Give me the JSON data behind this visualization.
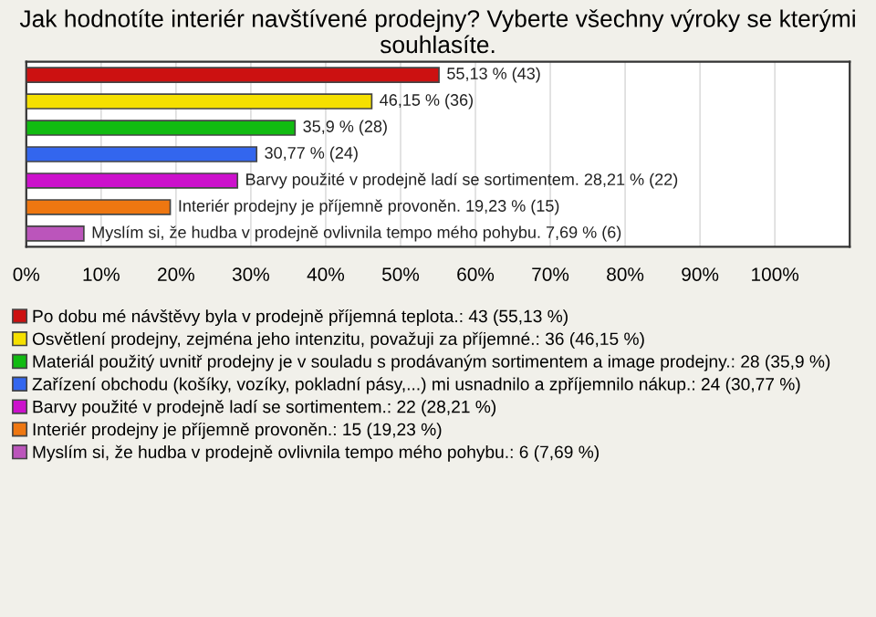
{
  "chart_data": {
    "type": "bar",
    "orientation": "horizontal",
    "stacked": true,
    "title": "Jak hodnotíte interiér navštívené prodejny? Vyberte všechny výroky se kterými souhlasíte.",
    "categories": [
      null,
      null,
      null,
      null,
      null,
      null,
      null
    ],
    "series": [
      {
        "name": "Po dobu mé návštěvy byla v prodejně příjemná teplota.: 43 (55,13 %)",
        "color": "#cc1111",
        "values": [
          55.13,
          null,
          null,
          null,
          null,
          null,
          null
        ],
        "value_labels": [
          "55,13 % (43)",
          null,
          null,
          null,
          null,
          null,
          null
        ]
      },
      {
        "name": "Osvětlení prodejny, zejména jeho intenzitu, považuji za příjemné.: 36 (46,15 %)",
        "color": "#f5e000",
        "values": [
          null,
          46.15,
          null,
          null,
          null,
          null,
          null
        ],
        "value_labels": [
          null,
          "46,15 % (36)",
          null,
          null,
          null,
          null,
          null
        ]
      },
      {
        "name": "Materiál použitý uvnitř prodejny je v souladu s prodávaným sortimentem a image prodejny.: 28 (35,9 %)",
        "color": "#11bb11",
        "values": [
          null,
          null,
          35.9,
          null,
          null,
          null,
          null
        ],
        "value_labels": [
          null,
          null,
          "35,9 % (28)",
          null,
          null,
          null,
          null
        ]
      },
      {
        "name": "Zařízení obchodu (košíky, vozíky, pokladní pásy,...) mi usnadnilo a zpříjemnilo nákup.: 24 (30,77 %)",
        "color": "#3366ee",
        "values": [
          null,
          null,
          null,
          30.77,
          null,
          null,
          null
        ],
        "value_labels": [
          null,
          null,
          null,
          "30,77 % (24)",
          null,
          null,
          null
        ]
      },
      {
        "name": "Barvy použité v prodejně ladí se sortimentem.: 22 (28,21 %)",
        "color": "#cc11cc",
        "values": [
          null,
          null,
          null,
          null,
          28.21,
          null,
          null
        ],
        "value_labels": [
          null,
          null,
          null,
          null,
          "Barvy použité v prodejně ladí se sortimentem. 28,21 % (22)",
          null,
          null
        ]
      },
      {
        "name": "Interiér prodejny je příjemně provoněn.: 15 (19,23 %)",
        "color": "#ee7711",
        "values": [
          null,
          null,
          null,
          null,
          null,
          19.23,
          null
        ],
        "value_labels": [
          null,
          null,
          null,
          null,
          null,
          "Interiér prodejny je příjemně provoněn. 19,23 % (15)",
          null
        ]
      },
      {
        "name": "Myslím si, že hudba v prodejně ovlivnila tempo mého pohybu.: 6 (7,69 %)",
        "color": "#bb55bb",
        "values": [
          null,
          null,
          null,
          null,
          null,
          null,
          7.69
        ],
        "value_labels": [
          null,
          null,
          null,
          null,
          null,
          null,
          "Myslím si, že hudba v prodejně ovlivnila tempo mého pohybu. 7,69 % (6)"
        ]
      }
    ],
    "xlim": [
      0,
      110
    ],
    "xticks": [
      {
        "value": 0,
        "label": "0%"
      },
      {
        "value": 10,
        "label": "10%"
      },
      {
        "value": 20,
        "label": "20%"
      },
      {
        "value": 30,
        "label": "30%"
      },
      {
        "value": 40,
        "label": "40%"
      },
      {
        "value": 50,
        "label": "50%"
      },
      {
        "value": 60,
        "label": "60%"
      },
      {
        "value": 70,
        "label": "70%"
      },
      {
        "value": 80,
        "label": "80%"
      },
      {
        "value": 90,
        "label": "90%"
      },
      {
        "value": 100,
        "label": "100%"
      }
    ],
    "grid": "x",
    "legend": "bottom",
    "tick_labels": "x"
  }
}
